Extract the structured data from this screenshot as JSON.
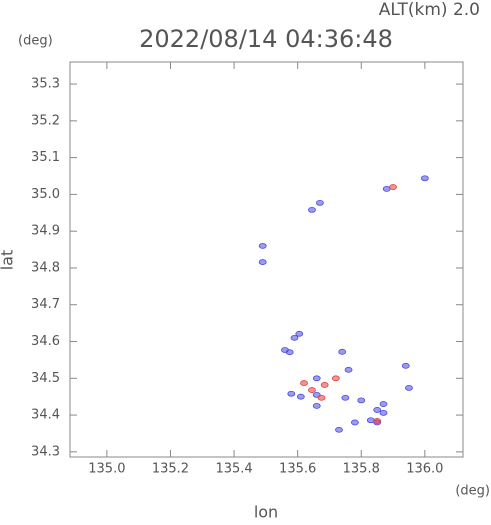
{
  "chart_data": {
    "type": "scatter",
    "header": "ALT(km) 2.0",
    "y_unit": "(deg)",
    "title": "2022/08/14 04:36:48",
    "ylabel": "lat",
    "xlabel": "lon",
    "x_unit": "(deg)",
    "xlim": [
      134.884,
      136.12
    ],
    "ylim": [
      34.286,
      35.36
    ],
    "xticks": [
      {
        "value": 135,
        "label": "135.0"
      },
      135.2,
      135.4,
      135.6,
      135.8,
      {
        "value": 136,
        "label": "136.0"
      }
    ],
    "yticks": [
      34.3,
      34.4,
      34.5,
      34.6,
      34.7,
      34.8,
      34.9,
      {
        "value": 35,
        "label": "35.0"
      },
      35.1,
      35.2,
      35.3
    ],
    "series": [
      {
        "color": "#4a4ae0",
        "x": [
          135.67,
          135.645,
          135.49,
          135.49,
          135.88,
          136.0,
          135.56,
          135.59,
          135.605,
          135.575,
          135.74,
          135.76,
          135.94,
          135.95,
          135.66,
          135.66,
          135.61,
          135.58,
          135.75,
          135.66,
          135.8,
          135.87,
          135.83,
          135.78,
          135.73,
          135.85,
          135.87,
          135.85
        ],
        "y": [
          34.977,
          34.958,
          34.86,
          34.816,
          35.015,
          35.044,
          34.577,
          34.61,
          34.621,
          34.571,
          34.572,
          34.523,
          34.534,
          34.474,
          34.5,
          34.455,
          34.45,
          34.458,
          34.447,
          34.425,
          34.44,
          34.43,
          34.386,
          34.38,
          34.36,
          34.38,
          34.406,
          34.414
        ]
      },
      {
        "color": "#e04040",
        "x": [
          135.9,
          135.62,
          135.645,
          135.685,
          135.675,
          135.85,
          135.72
        ],
        "y": [
          35.02,
          34.487,
          34.468,
          34.482,
          34.447,
          34.384,
          34.5
        ]
      }
    ]
  }
}
